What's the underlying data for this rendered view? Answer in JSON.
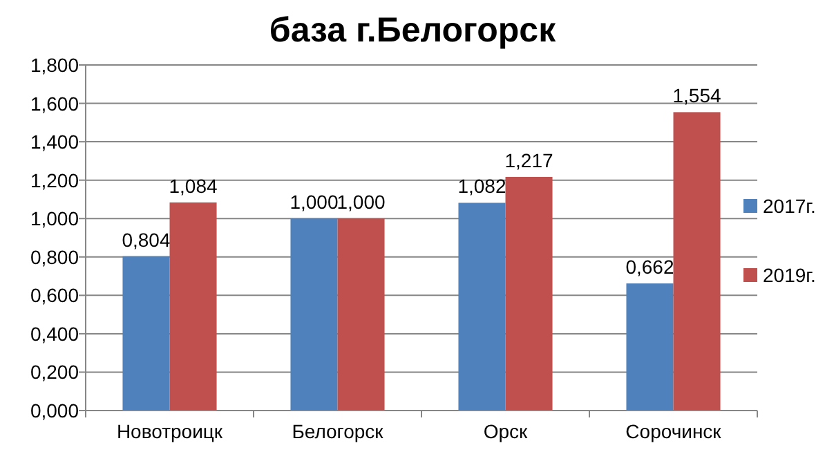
{
  "chart_data": {
    "type": "bar",
    "title": "база г.Белогорск",
    "categories": [
      "Новотроицк",
      "Белогорск",
      "Орск",
      "Сорочинск"
    ],
    "series": [
      {
        "name": "2017г.",
        "color": "#4f81bd",
        "values": [
          0.804,
          1.0,
          1.082,
          0.662
        ],
        "value_labels": [
          "0,804",
          "1,000",
          "1,082",
          "0,662"
        ]
      },
      {
        "name": "2019г.",
        "color": "#c0504d",
        "values": [
          1.084,
          1.0,
          1.217,
          1.554
        ],
        "value_labels": [
          "1,084",
          "1,000",
          "1,217",
          "1,554"
        ]
      }
    ],
    "ylim": [
      0,
      1.8
    ],
    "yticks": [
      {
        "value": 0,
        "label": "0,000"
      },
      {
        "value": 0.2,
        "label": "0,200"
      },
      {
        "value": 0.4,
        "label": "0,400"
      },
      {
        "value": 0.6,
        "label": "0,600"
      },
      {
        "value": 0.8,
        "label": "0,800"
      },
      {
        "value": 1.0,
        "label": "1,000"
      },
      {
        "value": 1.2,
        "label": "1,200"
      },
      {
        "value": 1.4,
        "label": "1,400"
      },
      {
        "value": 1.6,
        "label": "1,600"
      },
      {
        "value": 1.8,
        "label": "1,800"
      }
    ],
    "grid": "y",
    "legend": "right"
  }
}
